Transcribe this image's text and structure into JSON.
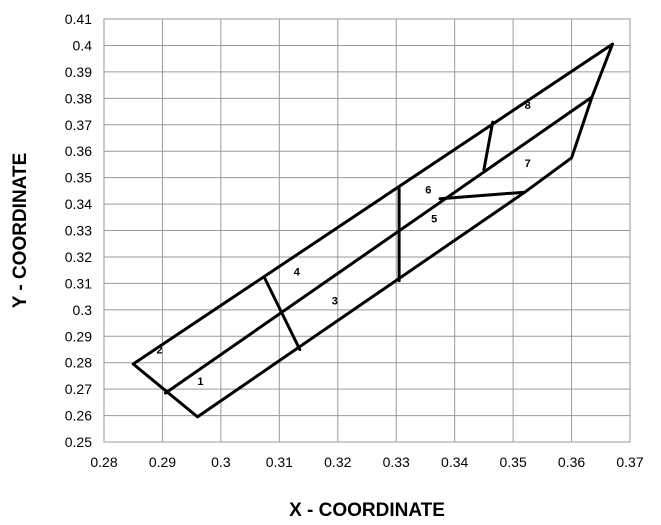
{
  "chart_data": {
    "type": "line",
    "title": "",
    "xlabel": "X - COORDINATE",
    "ylabel": "Y - COORDINATE",
    "xlim": [
      0.28,
      0.37
    ],
    "ylim": [
      0.25,
      0.41
    ],
    "grid": true,
    "x_ticks": [
      "0.28",
      "0.29",
      "0.3",
      "0.31",
      "0.32",
      "0.33",
      "0.34",
      "0.35",
      "0.36",
      "0.37"
    ],
    "y_ticks": [
      "0.41",
      "0.4",
      "0.39",
      "0.38",
      "0.37",
      "0.36",
      "0.35",
      "0.34",
      "0.33",
      "0.32",
      "0.31",
      "0.3",
      "0.29",
      "0.28",
      "0.27",
      "0.26",
      "0.25"
    ],
    "series": [
      {
        "points": [
          [
            0.285,
            0.2795
          ],
          [
            0.367,
            0.4005
          ],
          [
            0.3635,
            0.3805
          ],
          [
            0.36,
            0.3575
          ],
          [
            0.352,
            0.3445
          ],
          [
            0.296,
            0.2595
          ],
          [
            0.285,
            0.2795
          ]
        ]
      },
      {
        "points": [
          [
            0.2905,
            0.2685
          ],
          [
            0.3635,
            0.3805
          ]
        ]
      },
      {
        "points": [
          [
            0.3075,
            0.312
          ],
          [
            0.3135,
            0.285
          ]
        ]
      },
      {
        "points": [
          [
            0.3305,
            0.346
          ],
          [
            0.3305,
            0.311
          ]
        ]
      },
      {
        "points": [
          [
            0.3465,
            0.371
          ],
          [
            0.345,
            0.353
          ]
        ]
      },
      {
        "points": [
          [
            0.3375,
            0.342
          ],
          [
            0.352,
            0.3445
          ]
        ]
      }
    ],
    "annotations": [
      {
        "text": "1",
        "x": 0.2965,
        "y": 0.273
      },
      {
        "text": "2",
        "x": 0.2895,
        "y": 0.285
      },
      {
        "text": "3",
        "x": 0.3195,
        "y": 0.3035
      },
      {
        "text": "4",
        "x": 0.313,
        "y": 0.3145
      },
      {
        "text": "5",
        "x": 0.3365,
        "y": 0.3345
      },
      {
        "text": "6",
        "x": 0.3355,
        "y": 0.3455
      },
      {
        "text": "7",
        "x": 0.3525,
        "y": 0.3555
      },
      {
        "text": "8",
        "x": 0.3525,
        "y": 0.3775
      }
    ]
  }
}
